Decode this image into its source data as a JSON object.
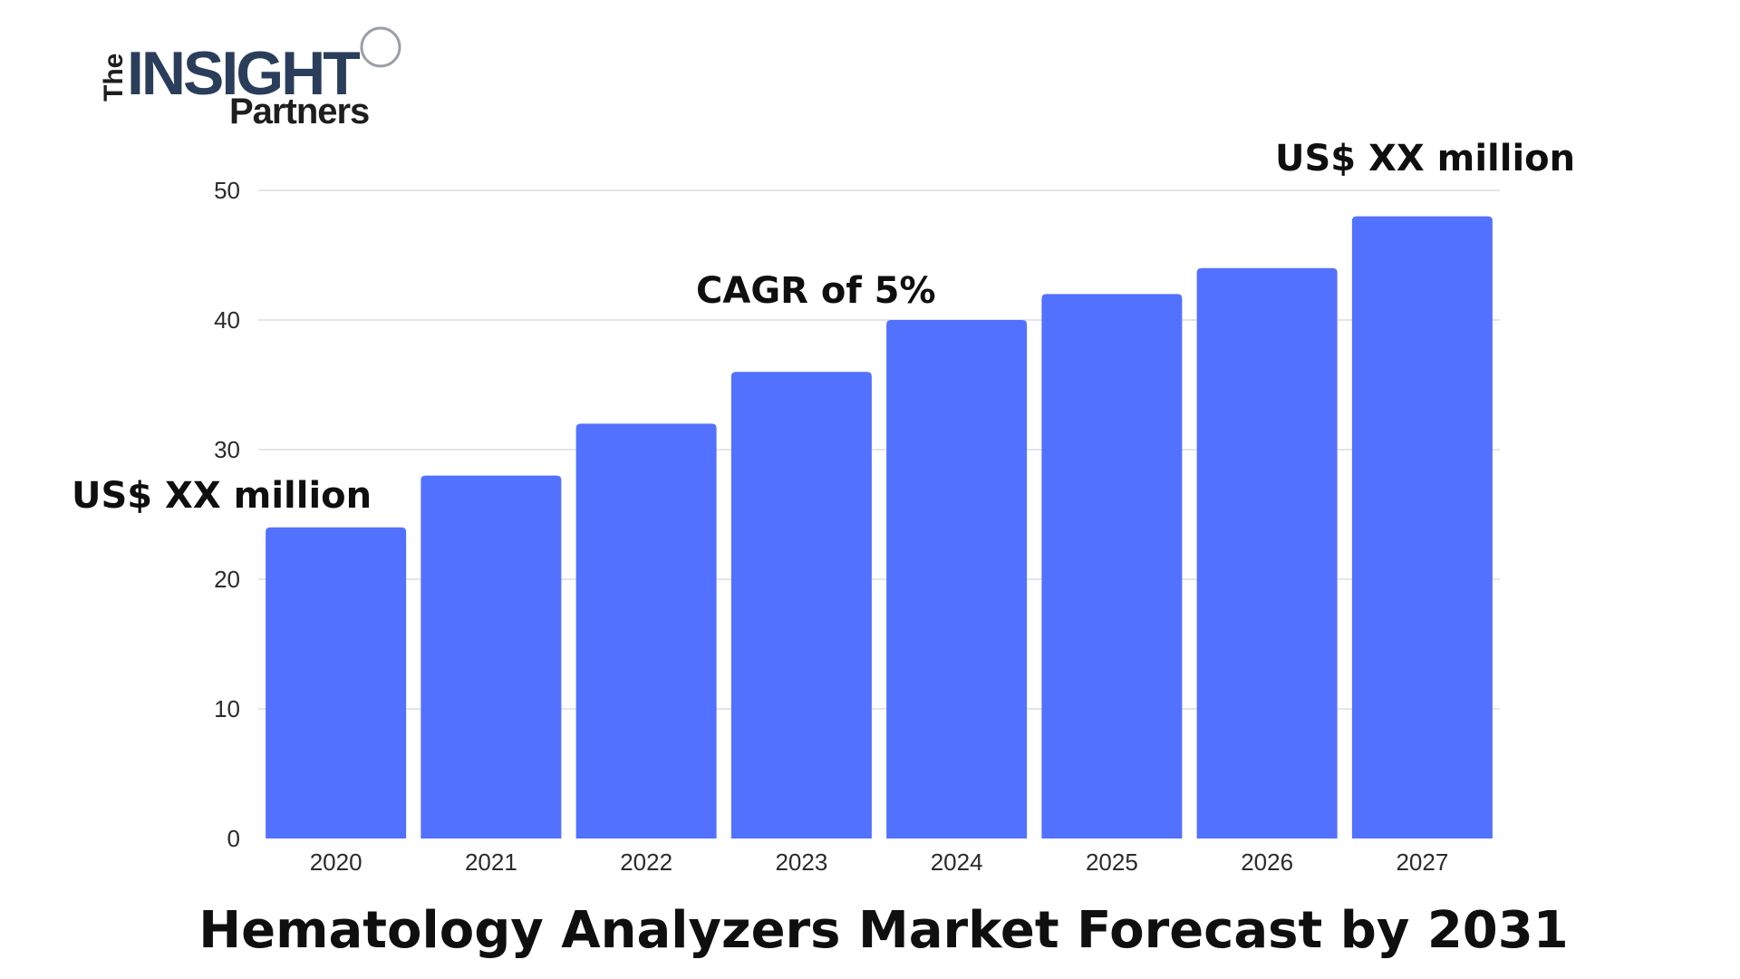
{
  "logo": {
    "the": "The",
    "insight": "INSIGHT",
    "partners": "Partners"
  },
  "colors": {
    "bar": "#5271ff",
    "grid": "#dddddd",
    "text": "#0f0f0f",
    "logo_navy": "#2a3d5a"
  },
  "chart_data": {
    "type": "bar",
    "title": "Hematology Analyzers Market Forecast by 2031",
    "categories": [
      "2020",
      "2021",
      "2022",
      "2023",
      "2024",
      "2025",
      "2026",
      "2027"
    ],
    "values": [
      24,
      28,
      32,
      36,
      40,
      42,
      44,
      48
    ],
    "ylim": [
      0,
      50
    ],
    "yticks": [
      "0",
      "10",
      "20",
      "30",
      "40",
      "50"
    ],
    "grid": true,
    "annotations": {
      "start_value": "US$ XX million",
      "cagr": "CAGR of 5%",
      "end_value": "US$ XX million"
    }
  }
}
